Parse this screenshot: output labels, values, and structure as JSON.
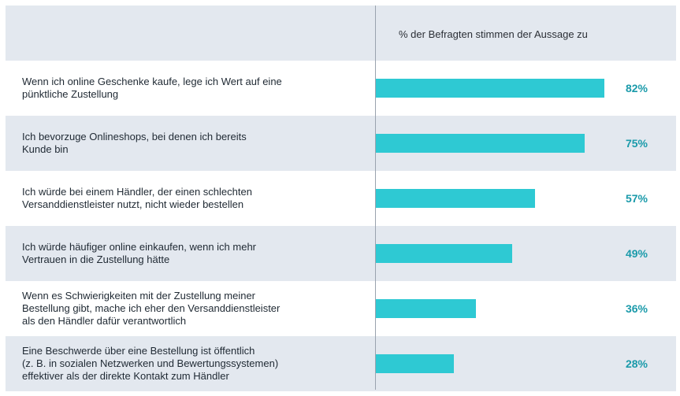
{
  "chart_data": {
    "type": "bar",
    "orientation": "horizontal",
    "column_header": "% der Befragten stimmen der Aussage zu",
    "categories": [
      "Wenn ich online Geschenke kaufe, lege ich Wert auf eine\npünktliche Zustellung",
      "Ich bevorzuge Onlineshops, bei denen ich bereits\nKunde bin",
      "Ich würde bei einem Händler, der einen schlechten\nVersanddienstleister nutzt, nicht wieder bestellen",
      "Ich würde häufiger online einkaufen, wenn ich mehr\nVertrauen in die Zustellung hätte",
      "Wenn es Schwierigkeiten mit der Zustellung meiner\nBestellung gibt, mache ich eher den Versanddienstleister\nals den Händler dafür verantwortlich",
      "Eine Beschwerde über eine Bestellung ist öffentlich\n(z. B. in sozialen Netzwerken und Bewertungssystemen)\neffektiver als der direkte Kontakt zum Händler"
    ],
    "values": [
      82,
      75,
      57,
      49,
      36,
      28
    ],
    "value_labels": [
      "82%",
      "75%",
      "57%",
      "49%",
      "36%",
      "28%"
    ],
    "xlim": [
      0,
      100
    ],
    "grid": false,
    "legend": "none",
    "bar_color": "#2ec9d3",
    "value_label_color": "#1a9aaa",
    "row_shade_color": "#e3e8ef"
  }
}
